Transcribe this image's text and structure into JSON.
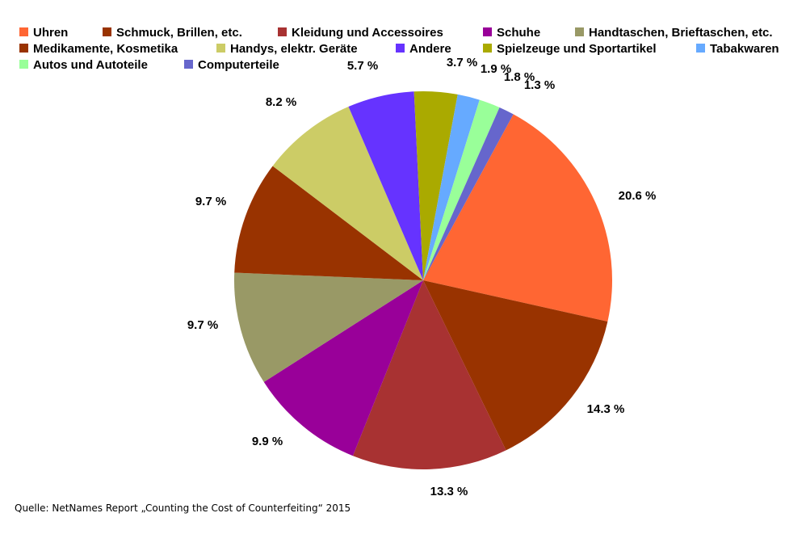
{
  "chart_data": {
    "type": "pie",
    "title": "",
    "categories": [
      "Uhren",
      "Schmuck, Brillen, etc.",
      "Kleidung und Accessoires",
      "Schuhe",
      "Handtaschen, Brieftaschen, etc.",
      "Medikamente, Kosmetika",
      "Handys, elektr. Geräte",
      "Andere",
      "Spielzeuge und Sportartikel",
      "Tabakwaren",
      "Autos und Autoteile",
      "Computerteile"
    ],
    "values": [
      20.6,
      14.3,
      13.3,
      9.9,
      9.7,
      9.7,
      8.2,
      5.7,
      3.7,
      1.9,
      1.8,
      1.3
    ],
    "labels": [
      "20.6 %",
      "14.3 %",
      "13.3 %",
      "9.9 %",
      "9.7 %",
      "9.7 %",
      "8.2 %",
      "5.7 %",
      "3.7 %",
      "1.9 %",
      "1.8 %",
      "1.3 %"
    ],
    "colors": [
      "#ff6633",
      "#993300",
      "#a83232",
      "#990099",
      "#999966",
      "#993300",
      "#cccc66",
      "#6633ff",
      "#aaaa00",
      "#66aaff",
      "#99ff99",
      "#6666cc"
    ],
    "legend_placement": "top",
    "start_angle_deg": 28.5,
    "direction": "clockwise"
  },
  "source": "Quelle: NetNames Report „Counting the Cost of Counterfeiting“ 2015"
}
